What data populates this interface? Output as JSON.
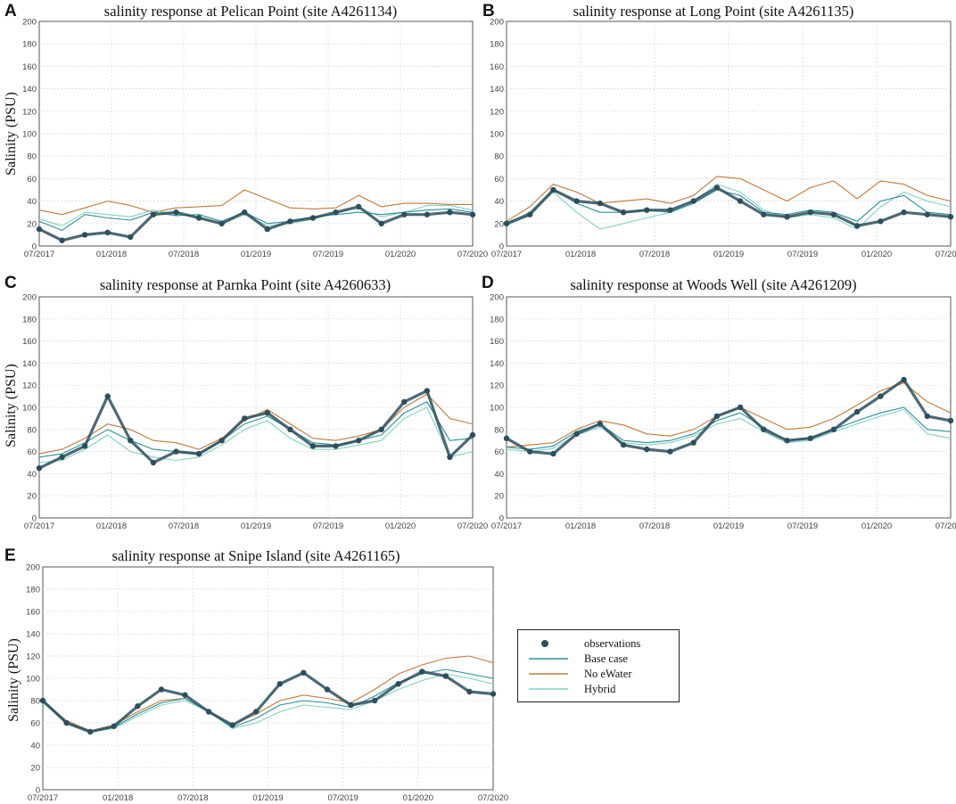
{
  "colors": {
    "observations": "#2d4f5e",
    "base_case": "#2a8f97",
    "no_ewater": "#c07a3a",
    "hybrid": "#7fd1c4",
    "grid": "#d6d6d6",
    "axis": "#555555"
  },
  "legend": {
    "items": [
      {
        "label": "observations",
        "kind": "marker"
      },
      {
        "label": "Base case",
        "kind": "line"
      },
      {
        "label": "No eWater",
        "kind": "line"
      },
      {
        "label": "Hybrid",
        "kind": "line"
      }
    ]
  },
  "chart_data": [
    {
      "letter": "A",
      "type": "line",
      "title": "salinity response at Pelican Point (site A4261134)",
      "ylabel": "Salinity (PSU)",
      "xlabel": "",
      "x_ticks": [
        "07/2017",
        "01/2018",
        "07/2018",
        "01/2019",
        "07/2019",
        "01/2020",
        "07/2020"
      ],
      "y_ticks": [
        0,
        20,
        40,
        60,
        80,
        100,
        120,
        140,
        160,
        180,
        200
      ],
      "ylim": [
        0,
        200
      ],
      "grid": true,
      "series": [
        {
          "name": "No eWater",
          "values": [
            32,
            28,
            34,
            40,
            36,
            30,
            34,
            35,
            36,
            50,
            42,
            34,
            33,
            34,
            45,
            35,
            38,
            38,
            37,
            37
          ]
        },
        {
          "name": "Base case",
          "values": [
            22,
            14,
            28,
            25,
            23,
            30,
            27,
            28,
            22,
            30,
            20,
            22,
            26,
            28,
            30,
            28,
            30,
            32,
            33,
            30
          ]
        },
        {
          "name": "Hybrid",
          "values": [
            24,
            18,
            30,
            28,
            26,
            32,
            28,
            26,
            20,
            28,
            18,
            20,
            24,
            30,
            34,
            26,
            30,
            36,
            36,
            32
          ]
        },
        {
          "name": "observations",
          "values": [
            15,
            5,
            10,
            12,
            8,
            28,
            30,
            25,
            20,
            30,
            15,
            22,
            25,
            30,
            35,
            20,
            28,
            28,
            30,
            28
          ]
        }
      ]
    },
    {
      "letter": "B",
      "type": "line",
      "title": "salinity response at Long Point (site A4261135)",
      "ylabel": "",
      "xlabel": "",
      "x_ticks": [
        "07/2017",
        "01/2018",
        "07/2018",
        "01/2019",
        "07/2019",
        "01/2020",
        "07/2020"
      ],
      "y_ticks": [
        0,
        20,
        40,
        60,
        80,
        100,
        120,
        140,
        160,
        180,
        200
      ],
      "ylim": [
        0,
        200
      ],
      "grid": true,
      "series": [
        {
          "name": "No eWater",
          "values": [
            22,
            35,
            55,
            48,
            38,
            40,
            42,
            38,
            45,
            62,
            60,
            50,
            40,
            52,
            58,
            42,
            58,
            55,
            45,
            40
          ]
        },
        {
          "name": "Base case",
          "values": [
            20,
            30,
            50,
            38,
            30,
            30,
            32,
            30,
            38,
            50,
            45,
            30,
            28,
            32,
            30,
            22,
            40,
            45,
            30,
            28
          ]
        },
        {
          "name": "Hybrid",
          "values": [
            18,
            28,
            48,
            30,
            15,
            20,
            25,
            30,
            40,
            55,
            48,
            32,
            25,
            28,
            25,
            15,
            35,
            48,
            40,
            35
          ]
        },
        {
          "name": "observations",
          "values": [
            20,
            28,
            50,
            40,
            38,
            30,
            32,
            32,
            40,
            52,
            40,
            28,
            26,
            30,
            28,
            18,
            22,
            30,
            28,
            26
          ]
        }
      ]
    },
    {
      "letter": "C",
      "type": "line",
      "title": "salinity response at Parnka Point (site A4260633)",
      "ylabel": "Salinity (PSU)",
      "xlabel": "",
      "x_ticks": [
        "07/2017",
        "01/2018",
        "07/2018",
        "01/2019",
        "07/2019",
        "01/2020",
        "07/2020"
      ],
      "y_ticks": [
        0,
        20,
        40,
        60,
        80,
        100,
        120,
        140,
        160,
        180,
        200
      ],
      "ylim": [
        0,
        200
      ],
      "grid": true,
      "series": [
        {
          "name": "No eWater",
          "values": [
            58,
            62,
            72,
            85,
            80,
            70,
            68,
            62,
            72,
            88,
            98,
            85,
            72,
            70,
            74,
            80,
            100,
            112,
            90,
            85
          ]
        },
        {
          "name": "Base case",
          "values": [
            55,
            58,
            68,
            80,
            70,
            62,
            60,
            58,
            70,
            85,
            92,
            80,
            68,
            66,
            70,
            75,
            95,
            105,
            70,
            72
          ]
        },
        {
          "name": "Hybrid",
          "values": [
            50,
            52,
            62,
            75,
            60,
            55,
            52,
            55,
            66,
            80,
            88,
            72,
            62,
            62,
            66,
            70,
            90,
            100,
            55,
            60
          ]
        },
        {
          "name": "observations",
          "values": [
            45,
            55,
            65,
            110,
            70,
            50,
            60,
            58,
            70,
            90,
            95,
            80,
            65,
            65,
            70,
            80,
            105,
            115,
            55,
            75
          ]
        }
      ]
    },
    {
      "letter": "D",
      "type": "line",
      "title": "salinity response at Woods Well (site A4261209)",
      "ylabel": "",
      "xlabel": "",
      "x_ticks": [
        "07/2017",
        "01/2018",
        "07/2018",
        "01/2019",
        "07/2019",
        "01/2020",
        "07/2020"
      ],
      "y_ticks": [
        0,
        20,
        40,
        60,
        80,
        100,
        120,
        140,
        160,
        180,
        200
      ],
      "ylim": [
        0,
        200
      ],
      "grid": true,
      "series": [
        {
          "name": "No eWater",
          "values": [
            64,
            66,
            68,
            80,
            88,
            84,
            76,
            74,
            80,
            92,
            100,
            90,
            80,
            82,
            90,
            102,
            115,
            122,
            105,
            95
          ]
        },
        {
          "name": "Base case",
          "values": [
            64,
            62,
            65,
            78,
            85,
            70,
            68,
            70,
            76,
            88,
            95,
            82,
            70,
            72,
            80,
            88,
            95,
            100,
            80,
            78
          ]
        },
        {
          "name": "Hybrid",
          "values": [
            62,
            60,
            63,
            75,
            82,
            68,
            66,
            68,
            74,
            85,
            90,
            78,
            68,
            70,
            78,
            85,
            92,
            98,
            76,
            72
          ]
        },
        {
          "name": "observations",
          "values": [
            72,
            60,
            58,
            76,
            85,
            66,
            62,
            60,
            68,
            92,
            100,
            80,
            70,
            72,
            80,
            96,
            110,
            125,
            92,
            88
          ]
        }
      ]
    },
    {
      "letter": "E",
      "type": "line",
      "title": "salinity response at Snipe Island (site A4261165)",
      "ylabel": "Salinity (PSU)",
      "xlabel": "",
      "x_ticks": [
        "07/2017",
        "01/2018",
        "07/2018",
        "01/2019",
        "07/2019",
        "01/2020",
        "07/2020"
      ],
      "y_ticks": [
        0,
        20,
        40,
        60,
        80,
        100,
        120,
        140,
        160,
        180,
        200
      ],
      "ylim": [
        0,
        200
      ],
      "grid": true,
      "series": [
        {
          "name": "No eWater",
          "values": [
            80,
            62,
            53,
            58,
            70,
            80,
            82,
            70,
            58,
            68,
            80,
            85,
            82,
            78,
            90,
            104,
            112,
            118,
            120,
            114
          ]
        },
        {
          "name": "Base case",
          "values": [
            80,
            60,
            52,
            56,
            68,
            78,
            82,
            70,
            56,
            64,
            76,
            80,
            78,
            74,
            84,
            96,
            104,
            108,
            104,
            100
          ]
        },
        {
          "name": "Hybrid",
          "values": [
            78,
            60,
            52,
            55,
            66,
            76,
            80,
            70,
            55,
            60,
            70,
            76,
            74,
            72,
            80,
            90,
            98,
            104,
            100,
            95
          ]
        },
        {
          "name": "observations",
          "values": [
            80,
            60,
            52,
            57,
            75,
            90,
            85,
            70,
            58,
            70,
            95,
            105,
            90,
            76,
            80,
            95,
            106,
            102,
            88,
            86
          ]
        }
      ]
    }
  ]
}
